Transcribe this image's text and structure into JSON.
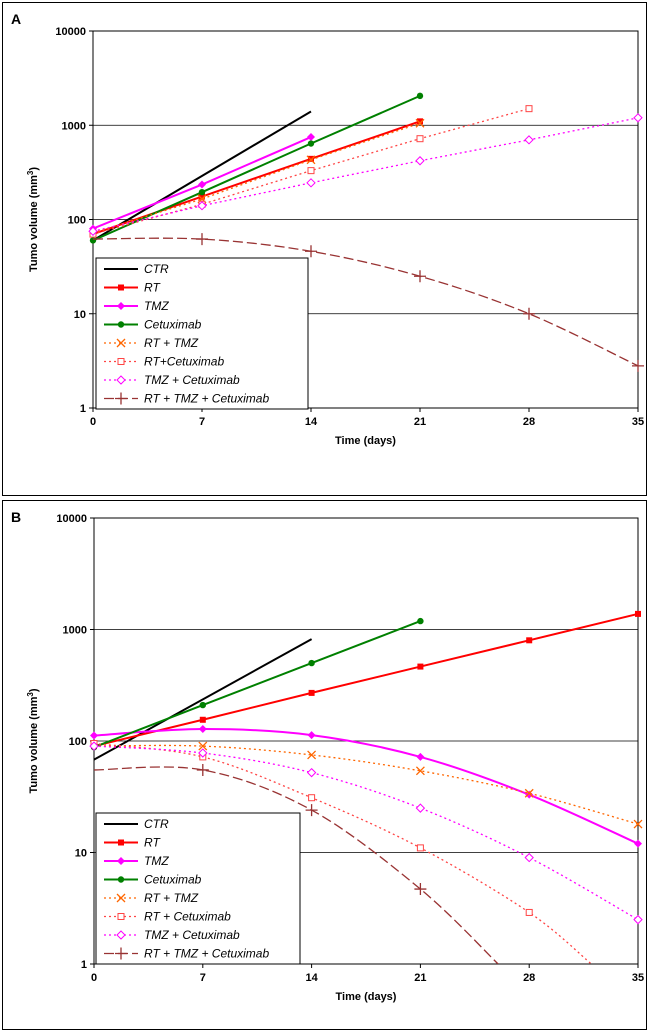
{
  "chart_data": [
    {
      "type": "line",
      "panel_label": "A",
      "xlabel": "Time (days)",
      "ylabel": "Tumo volume (mm",
      "ylabel_sup": "3",
      "ylabel_end": ")",
      "yscale": "log",
      "xlim": [
        0,
        35
      ],
      "ylim": [
        1,
        10000
      ],
      "xticks": [
        "0",
        "7",
        "14",
        "21",
        "28",
        "35"
      ],
      "xtick_values": [
        0,
        7,
        14,
        21,
        28,
        35
      ],
      "yticks": [
        "1",
        "10",
        "100",
        "1000",
        "10000"
      ],
      "ytick_values": [
        1,
        10,
        100,
        1000,
        10000
      ],
      "gridlines": "horizontal",
      "legend_position": "lower-left",
      "series": [
        {
          "name": "CTR",
          "color": "#000000",
          "dash": "solid",
          "marker": "none",
          "smooth": false,
          "x": [
            0,
            14
          ],
          "y": [
            60,
            1400
          ]
        },
        {
          "name": "RT",
          "color": "#ff0000",
          "dash": "solid",
          "marker": "square",
          "smooth": false,
          "x": [
            0,
            7,
            14,
            21
          ],
          "y": [
            70,
            175,
            440,
            1100
          ]
        },
        {
          "name": "TMZ",
          "color": "#ff00ff",
          "dash": "solid",
          "marker": "diamond",
          "smooth": false,
          "x": [
            0,
            7,
            14
          ],
          "y": [
            80,
            235,
            750
          ]
        },
        {
          "name": "Cetuximab",
          "color": "#008000",
          "dash": "solid",
          "marker": "circle",
          "smooth": false,
          "x": [
            0,
            7,
            14,
            21
          ],
          "y": [
            60,
            195,
            640,
            2050
          ]
        },
        {
          "name": "RT + TMZ",
          "color": "#ff6600",
          "dash": "dotted",
          "marker": "x",
          "smooth": false,
          "x": [
            0,
            7,
            14,
            21
          ],
          "y": [
            72,
            165,
            430,
            1050
          ]
        },
        {
          "name": "RT+Cetuximab",
          "color": "#ff4444",
          "dash": "dotted",
          "marker": "open-square",
          "smooth": false,
          "x": [
            0,
            7,
            14,
            21,
            28
          ],
          "y": [
            70,
            145,
            330,
            720,
            1500
          ]
        },
        {
          "name": "TMZ + Cetuximab",
          "color": "#ff00ff",
          "dash": "dotted",
          "marker": "open-diamond",
          "smooth": false,
          "x": [
            0,
            7,
            14,
            21,
            28,
            35
          ],
          "y": [
            75,
            140,
            245,
            420,
            700,
            1200
          ]
        },
        {
          "name": "RT + TMZ + Cetuximab",
          "color": "#993333",
          "dash": "dashed",
          "marker": "plus",
          "smooth": true,
          "x": [
            0,
            7,
            14,
            21,
            28,
            35
          ],
          "y": [
            62,
            62,
            46,
            25,
            10,
            2.8
          ]
        }
      ]
    },
    {
      "type": "line",
      "panel_label": "B",
      "xlabel": "Time (days)",
      "ylabel": "Tumo volume (mm",
      "ylabel_sup": "3",
      "ylabel_end": ")",
      "yscale": "log",
      "xlim": [
        0,
        35
      ],
      "ylim": [
        1,
        10000
      ],
      "xticks": [
        "0",
        "7",
        "14",
        "21",
        "28",
        "35"
      ],
      "xtick_values": [
        0,
        7,
        14,
        21,
        28,
        35
      ],
      "yticks": [
        "1",
        "10",
        "100",
        "1000",
        "10000"
      ],
      "ytick_values": [
        1,
        10,
        100,
        1000,
        10000
      ],
      "gridlines": "horizontal",
      "legend_position": "lower-left",
      "series": [
        {
          "name": "CTR",
          "color": "#000000",
          "dash": "solid",
          "marker": "none",
          "smooth": false,
          "x": [
            0,
            14
          ],
          "y": [
            68,
            820
          ]
        },
        {
          "name": "RT",
          "color": "#ff0000",
          "dash": "solid",
          "marker": "square",
          "smooth": false,
          "x": [
            0,
            7,
            14,
            21,
            28,
            35
          ],
          "y": [
            90,
            155,
            270,
            465,
            800,
            1380
          ]
        },
        {
          "name": "TMZ",
          "color": "#ff00ff",
          "dash": "solid",
          "marker": "diamond",
          "smooth": true,
          "x": [
            0,
            7,
            14,
            21,
            28,
            35
          ],
          "y": [
            112,
            128,
            113,
            72,
            33,
            12
          ]
        },
        {
          "name": "Cetuximab",
          "color": "#008000",
          "dash": "solid",
          "marker": "circle",
          "smooth": false,
          "x": [
            0,
            7,
            14,
            21
          ],
          "y": [
            88,
            210,
            500,
            1190
          ]
        },
        {
          "name": "RT + TMZ",
          "color": "#ff6600",
          "dash": "dotted",
          "marker": "x",
          "smooth": true,
          "x": [
            0,
            7,
            14,
            21,
            28,
            35
          ],
          "y": [
            90,
            90,
            75,
            54,
            34,
            18
          ]
        },
        {
          "name": "RT + Cetuximab",
          "color": "#ff4444",
          "dash": "dotted",
          "marker": "open-square",
          "smooth": true,
          "x": [
            0,
            7,
            14,
            21,
            28,
            32
          ],
          "y": [
            95,
            72,
            31,
            11,
            2.9,
            1
          ]
        },
        {
          "name": "TMZ + Cetuximab",
          "color": "#ff00ff",
          "dash": "dotted",
          "marker": "open-diamond",
          "smooth": true,
          "x": [
            0,
            7,
            14,
            21,
            28,
            35
          ],
          "y": [
            90,
            78,
            52,
            25,
            9,
            2.5
          ]
        },
        {
          "name": "RT + TMZ + Cetuximab",
          "color": "#993333",
          "dash": "dashed",
          "marker": "plus",
          "smooth": true,
          "x": [
            0,
            7,
            14,
            21,
            26
          ],
          "y": [
            55,
            55,
            24,
            4.7,
            1
          ]
        }
      ]
    }
  ]
}
